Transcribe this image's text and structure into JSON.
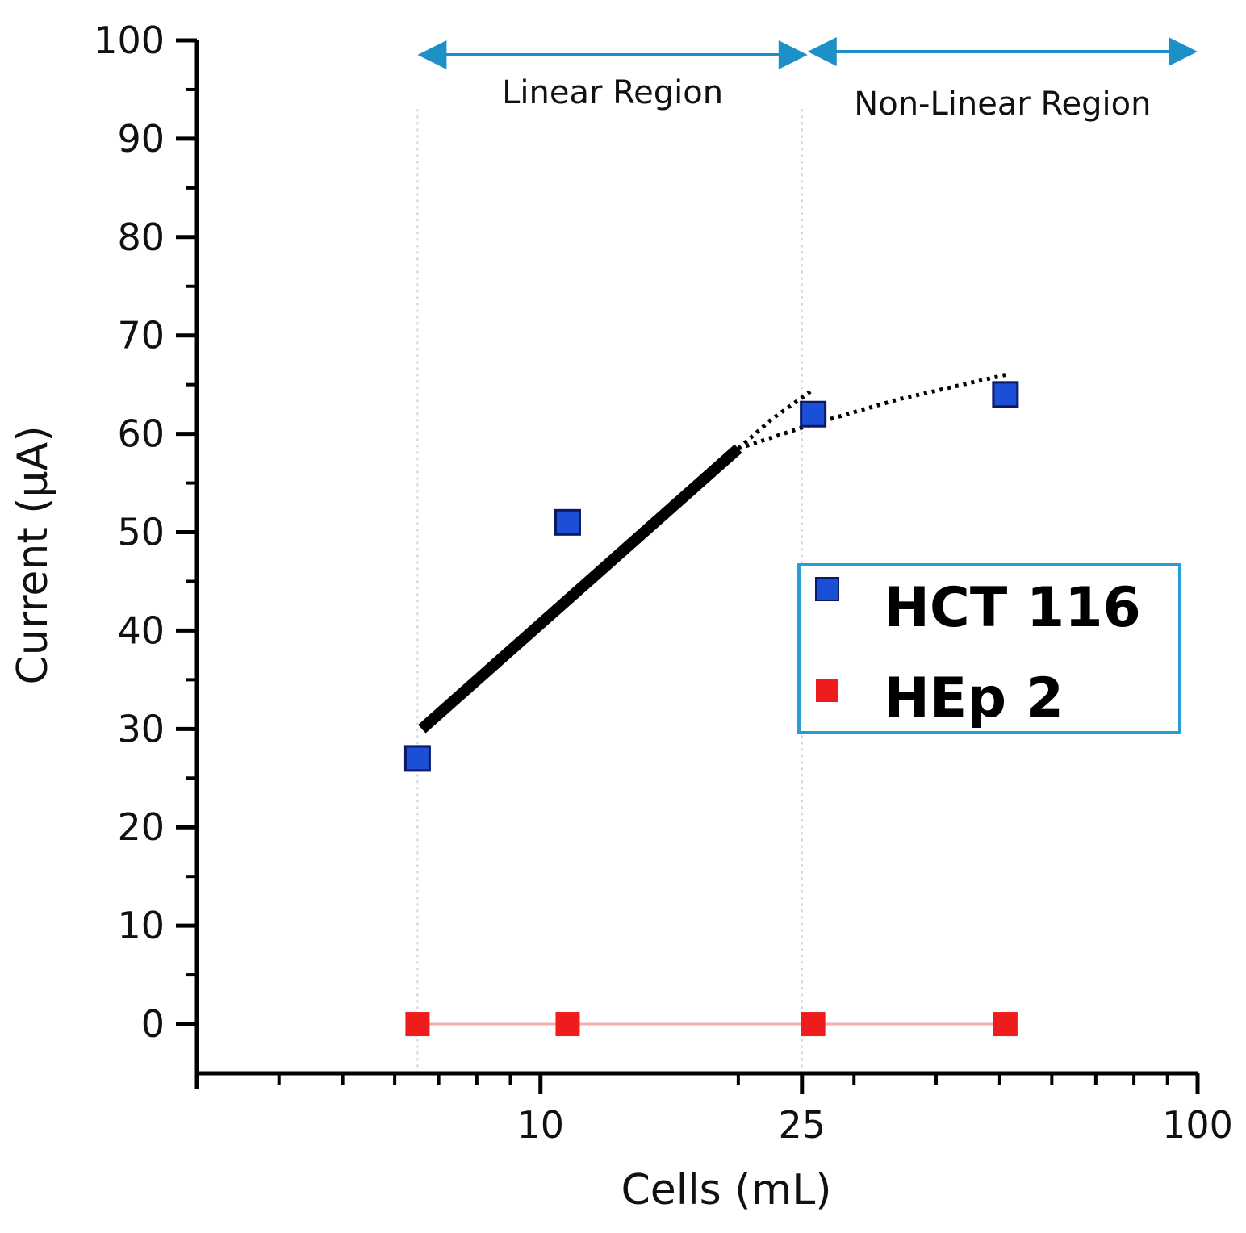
{
  "chart_data": {
    "type": "scatter",
    "xscale": "log",
    "xlim": [
      3,
      100
    ],
    "ylim": [
      -5,
      100
    ],
    "xlabel": "Cells (mL)",
    "ylabel": "Current (μA)",
    "x_ticks": [
      {
        "value": 10,
        "label": "10"
      },
      {
        "value": 25,
        "label": "25"
      },
      {
        "value": 100,
        "label": "100"
      }
    ],
    "y_ticks": [
      0,
      10,
      20,
      30,
      40,
      50,
      60,
      70,
      80,
      90,
      100
    ],
    "series": [
      {
        "name": "HCT 116",
        "color": "#1a4fd6",
        "points": [
          [
            6.5,
            27
          ],
          [
            11,
            51
          ],
          [
            26,
            62
          ],
          [
            51,
            64
          ]
        ]
      },
      {
        "name": "HEp 2",
        "color": "#ee1c1c",
        "points": [
          [
            6.5,
            0
          ],
          [
            11,
            0
          ],
          [
            26,
            0
          ],
          [
            51,
            0
          ]
        ]
      }
    ],
    "linear_fit": {
      "points": [
        [
          6.6,
          30
        ],
        [
          20,
          58.5
        ]
      ]
    },
    "nonlinear_fits": [
      {
        "points": [
          [
            20,
            58.5
          ],
          [
            22.5,
            61.5
          ],
          [
            26,
            64.5
          ]
        ]
      },
      {
        "points": [
          [
            20,
            58.5
          ],
          [
            26,
            61
          ],
          [
            35,
            63.5
          ],
          [
            51,
            66
          ]
        ]
      }
    ],
    "hep2_line": {
      "points": [
        [
          6.5,
          0
        ],
        [
          51,
          0
        ]
      ],
      "color": "#f4b0b0"
    },
    "region_boundaries": [
      6.5,
      25
    ],
    "regions": [
      {
        "label": "Linear Region",
        "from": 6.5,
        "to": 25.5
      },
      {
        "label": "Non-Linear Region",
        "from": 25.5,
        "to": 100
      }
    ],
    "legend": {
      "position": "center-right",
      "entries": [
        "HCT 116",
        "HEp 2"
      ]
    },
    "colors": {
      "arrow": "#1e90c8",
      "legend_border": "#2a9ad8",
      "fit": "#000000"
    }
  }
}
